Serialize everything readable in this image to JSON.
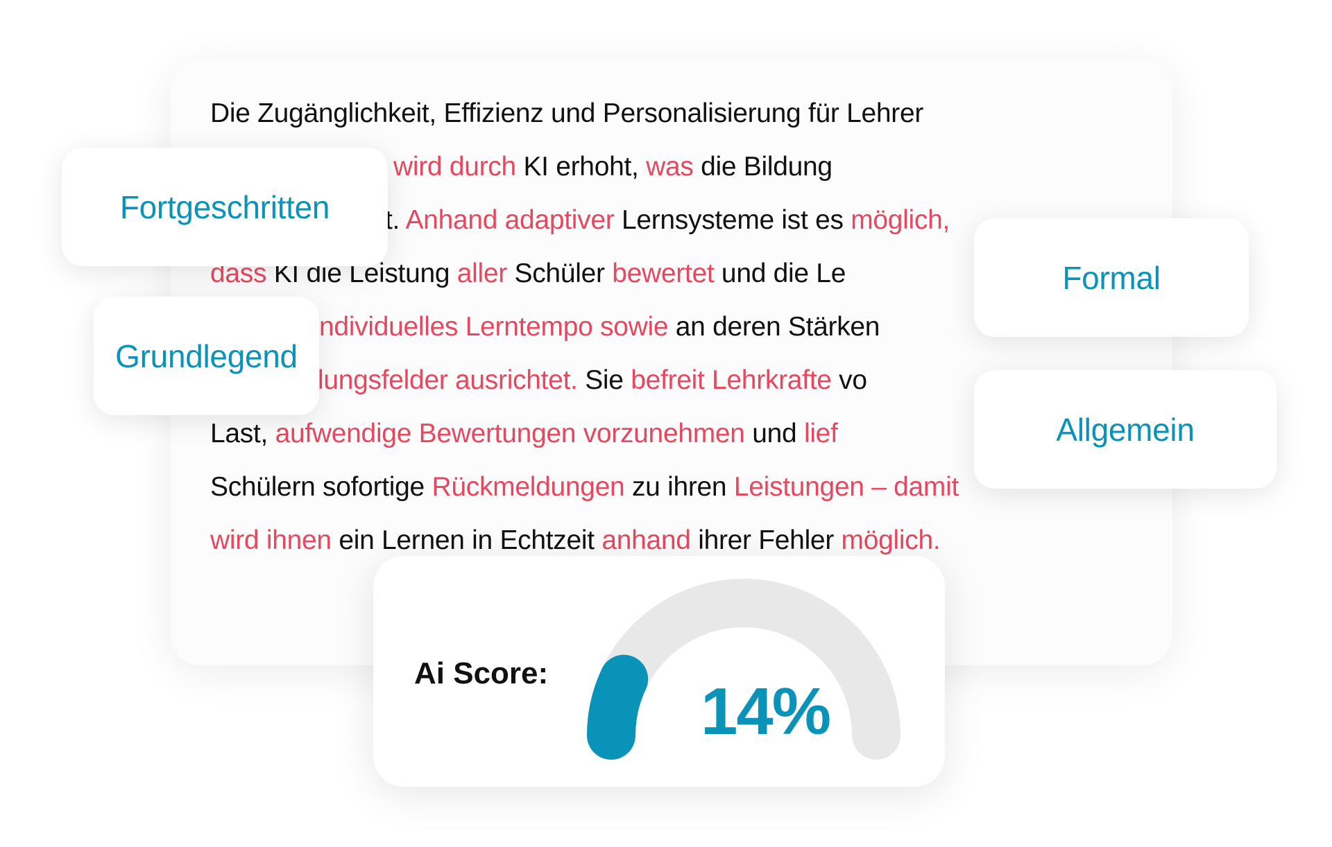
{
  "paragraph": {
    "lines": [
      [
        {
          "t": "Die Zugänglichkeit, Effizienz und Personalisierung für Lehrer",
          "r": false
        }
      ],
      [
        {
          "t": "wird durch",
          "r": true
        },
        {
          "t": " KI erhoht, ",
          "r": false
        },
        {
          "t": "was",
          "r": true
        },
        {
          "t": " die Bildung",
          "r": false
        }
      ],
      [
        {
          "t": "t. ",
          "r": false
        },
        {
          "t": "Anhand adaptiver",
          "r": true
        },
        {
          "t": " Lernsysteme ist es ",
          "r": false
        },
        {
          "t": "möglich,",
          "r": true
        }
      ],
      [
        {
          "t": "dass",
          "r": true
        },
        {
          "t": " KI die Leistung ",
          "r": false
        },
        {
          "t": "aller",
          "r": true
        },
        {
          "t": " Schüler ",
          "r": false
        },
        {
          "t": "bewertet",
          "r": true
        },
        {
          "t": " und die Le",
          "r": false
        }
      ],
      [
        {
          "t": "ndividuelles Lerntempo sowie",
          "r": true
        },
        {
          "t": " an deren Stärken",
          "r": false
        }
      ],
      [
        {
          "t": "lungsfelder ausrichtet.",
          "r": true
        },
        {
          "t": " Sie ",
          "r": false
        },
        {
          "t": "befreit Lehrkrafte",
          "r": true
        },
        {
          "t": " vo",
          "r": false
        }
      ],
      [
        {
          "t": "Last, ",
          "r": false
        },
        {
          "t": "aufwendige Bewertungen vorzunehmen",
          "r": true
        },
        {
          "t": " und ",
          "r": false
        },
        {
          "t": "lief",
          "r": true
        }
      ],
      [
        {
          "t": "Schülern sofortige ",
          "r": false
        },
        {
          "t": "Rückmeldungen",
          "r": true
        },
        {
          "t": " zu ihren ",
          "r": false
        },
        {
          "t": "Leistungen – damit",
          "r": true
        }
      ],
      [
        {
          "t": "wird ihnen",
          "r": true
        },
        {
          "t": " ein Lernen in Echtzeit ",
          "r": false
        },
        {
          "t": "anhand",
          "r": true
        },
        {
          "t": " ihrer Fehler ",
          "r": false
        },
        {
          "t": "möglich.",
          "r": true
        }
      ]
    ]
  },
  "tags": {
    "advanced": "Fortgeschritten",
    "basic": "Grundlegend",
    "formal": "Formal",
    "general": "Allgemein"
  },
  "score": {
    "label": "Ai Score:",
    "value_text": "14%",
    "value": 14,
    "max": 100
  },
  "colors": {
    "accent": "#0a93b8",
    "highlight": "#e5485f",
    "gauge_track": "#e8e8e8"
  }
}
